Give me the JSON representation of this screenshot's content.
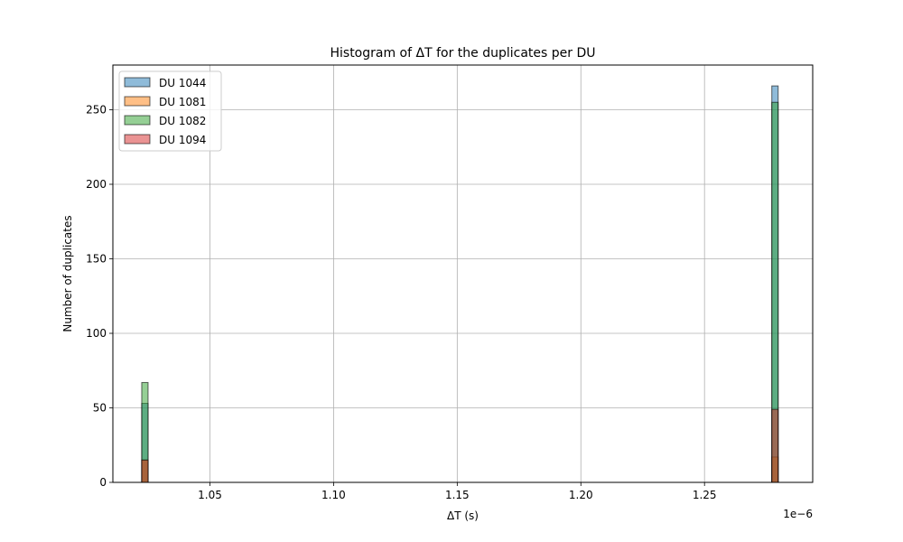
{
  "chart_data": {
    "type": "bar",
    "subtype": "overlaid-histogram",
    "title": "Histogram of ΔT for the duplicates per DU",
    "xlabel": "ΔT (s)",
    "ylabel": "Number of duplicates",
    "x_offset_text": "1e−6",
    "xlim": [
      1.01075,
      1.29375
    ],
    "ylim": [
      0,
      280
    ],
    "xticks": [
      1.05,
      1.1,
      1.15,
      1.2,
      1.25
    ],
    "xtick_labels": [
      "1.05",
      "1.10",
      "1.15",
      "1.20",
      "1.25"
    ],
    "yticks": [
      0,
      50,
      100,
      150,
      200,
      250
    ],
    "ytick_labels": [
      "0",
      "50",
      "100",
      "150",
      "200",
      "250"
    ],
    "bin_width": 0.00257,
    "grid": true,
    "legend_position": "top-left",
    "series": [
      {
        "name": "DU 1044",
        "color": "#1f77b4",
        "bins": [
          {
            "x": 1.0237,
            "value": 53
          },
          {
            "x": 1.2785,
            "value": 266
          }
        ]
      },
      {
        "name": "DU 1081",
        "color": "#ff7f0e",
        "bins": [
          {
            "x": 1.0237,
            "value": 15
          },
          {
            "x": 1.2785,
            "value": 17
          }
        ]
      },
      {
        "name": "DU 1082",
        "color": "#2ca02c",
        "bins": [
          {
            "x": 1.0237,
            "value": 67
          },
          {
            "x": 1.2785,
            "value": 255
          }
        ]
      },
      {
        "name": "DU 1094",
        "color": "#d62728",
        "bins": [
          {
            "x": 1.0237,
            "value": 15
          },
          {
            "x": 1.2785,
            "value": 49
          }
        ]
      }
    ]
  }
}
